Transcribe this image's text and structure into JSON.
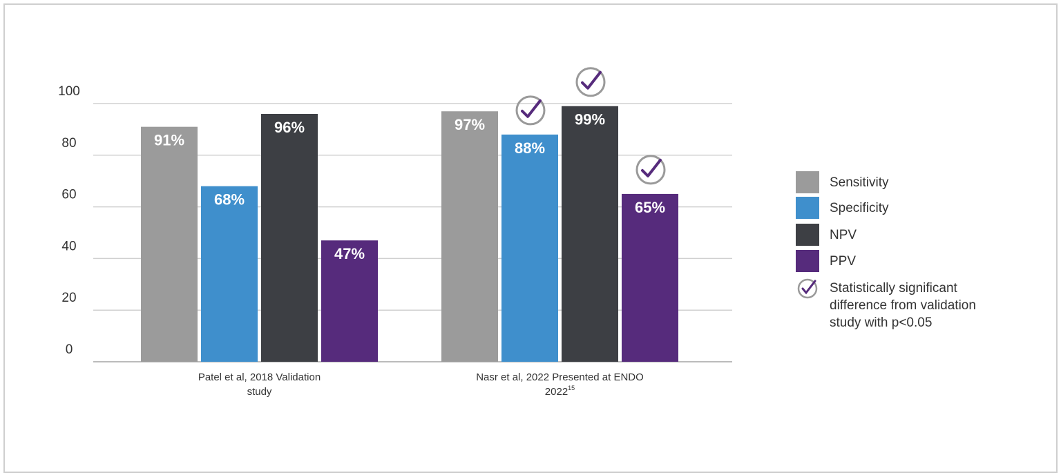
{
  "chart_data": {
    "type": "bar",
    "categories": [
      "Patel et al, 2018 Validation study",
      "Nasr et al, 2022 Presented at ENDO 2022"
    ],
    "category_lines": [
      [
        "Patel et al, 2018 Validation",
        "study",
        ""
      ],
      [
        "Nasr et al, 2022 Presented at ENDO",
        "2022",
        "15"
      ]
    ],
    "series": [
      {
        "name": "Sensitivity",
        "color": "#9b9b9b",
        "values": [
          91,
          97
        ],
        "labels": [
          "91%",
          "97%"
        ],
        "significant": [
          false,
          false
        ]
      },
      {
        "name": "Specificity",
        "color": "#3f8fcc",
        "values": [
          68,
          88
        ],
        "labels": [
          "68%",
          "88%"
        ],
        "significant": [
          false,
          true
        ]
      },
      {
        "name": "NPV",
        "color": "#3d3f44",
        "values": [
          96,
          99
        ],
        "labels": [
          "96%",
          "99%"
        ],
        "significant": [
          false,
          true
        ]
      },
      {
        "name": "PPV",
        "color": "#562b7c",
        "values": [
          47,
          65
        ],
        "labels": [
          "47%",
          "65%"
        ],
        "significant": [
          false,
          true
        ]
      }
    ],
    "yticks": [
      0,
      20,
      40,
      60,
      80,
      100
    ],
    "ylim": [
      0,
      100
    ],
    "grid": true,
    "legend_position": "right",
    "significance_legend": [
      "Statistically significant",
      "difference from validation",
      "study with p<0.05"
    ],
    "check_color": "#562b7c"
  }
}
